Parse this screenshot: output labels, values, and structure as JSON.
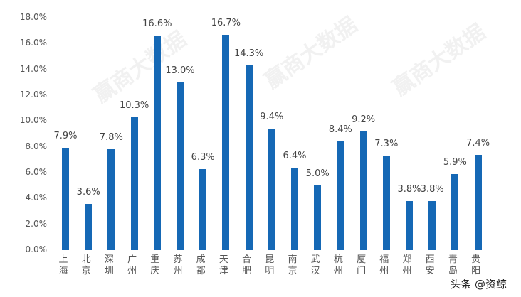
{
  "chart_data": {
    "type": "bar",
    "title": "",
    "xlabel": "",
    "ylabel": "",
    "ylim": [
      0,
      18
    ],
    "yticks": [
      "0.0%",
      "2.0%",
      "4.0%",
      "6.0%",
      "8.0%",
      "10.0%",
      "12.0%",
      "14.0%",
      "16.0%",
      "18.0%"
    ],
    "grid": false,
    "legend": null,
    "categories": [
      "上海",
      "北京",
      "深圳",
      "广州",
      "重庆",
      "苏州",
      "成都",
      "天津",
      "合肥",
      "昆明",
      "南京",
      "武汉",
      "杭州",
      "厦门",
      "福州",
      "郑州",
      "西安",
      "青岛",
      "贵阳"
    ],
    "values": [
      7.9,
      3.6,
      7.8,
      10.3,
      16.6,
      13.0,
      6.3,
      16.7,
      14.3,
      9.4,
      6.4,
      5.0,
      8.4,
      9.2,
      7.3,
      3.8,
      3.8,
      5.9,
      7.4
    ],
    "value_labels": [
      "7.9%",
      "3.6%",
      "7.8%",
      "10.3%",
      "16.6%",
      "13.0%",
      "6.3%",
      "16.7%",
      "14.3%",
      "9.4%",
      "6.4%",
      "5.0%",
      "8.4%",
      "9.2%",
      "7.3%",
      "3.8%",
      "3.8%",
      "5.9%",
      "7.4%"
    ],
    "bar_color": "#1568b5"
  },
  "watermark": "头条 @资鲸",
  "background_watermark": "赢商大数据"
}
